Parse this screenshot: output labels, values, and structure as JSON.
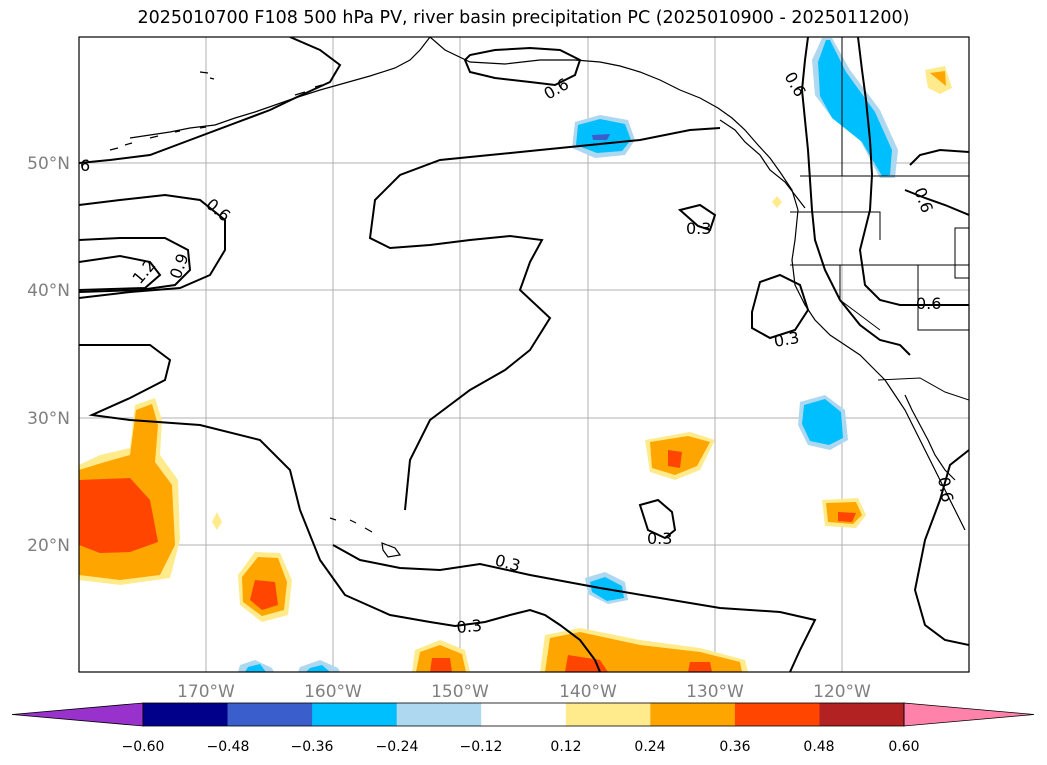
{
  "title": "2025010700 F108 500 hPa PV, river basin precipitation PC (2025010900 - 2025011200)",
  "map": {
    "lon_labels": [
      "170°W",
      "160°W",
      "150°W",
      "140°W",
      "130°W",
      "120°W"
    ],
    "lat_labels": [
      "50°N",
      "40°N",
      "30°N",
      "20°N"
    ],
    "contour_labels": [
      "6",
      "0.6",
      "1.2",
      "0.9",
      "0.6",
      "0.3",
      "0.3",
      "0.3",
      "0.3",
      "0.3",
      "0.6",
      "0.6",
      "0.6",
      "0.6"
    ],
    "colors": {
      "coast": "#000000",
      "grid": "#b0b0b0",
      "pos_light": "#ffeb8c",
      "pos_mid": "#ffa500",
      "pos_strong": "#ff4500",
      "neg_light": "#add8f0",
      "neg_mid": "#00bfff",
      "neg_strong": "#3a5fcd"
    }
  },
  "colorbar": {
    "colors": [
      "#9932cc",
      "#00008b",
      "#3a5fcd",
      "#00bfff",
      "#add8f0",
      "#ffffff",
      "#ffeb8c",
      "#ffa500",
      "#ff4500",
      "#b22222",
      "#ff82ab"
    ],
    "tick_labels": [
      "−0.60",
      "−0.48",
      "−0.36",
      "−0.24",
      "−0.12",
      "0.12",
      "0.24",
      "0.36",
      "0.48",
      "0.60"
    ]
  }
}
